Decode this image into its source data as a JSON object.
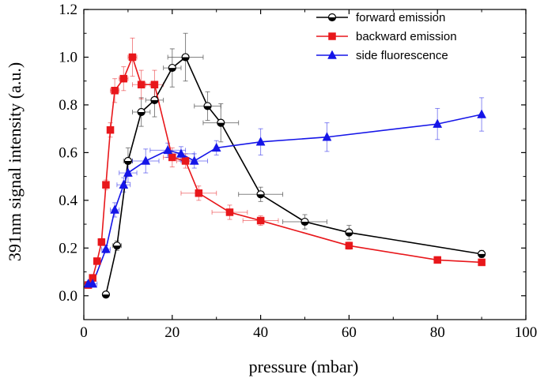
{
  "chart_data": {
    "type": "line",
    "xlabel": "pressure (mbar)",
    "ylabel": "391nm signal intensity (a.u.)",
    "xlim": [
      0,
      100
    ],
    "ylim": [
      -0.1,
      1.2
    ],
    "xticks": [
      "0",
      "20",
      "40",
      "60",
      "80",
      "100"
    ],
    "yticks": [
      "0.0",
      "0.2",
      "0.4",
      "0.6",
      "0.8",
      "1.0",
      "1.2"
    ],
    "grid": false,
    "legend_position": "top-right",
    "series": [
      {
        "name": "forward emission",
        "color": "#000000",
        "marker": "half-filled-circle",
        "points": [
          {
            "x": 5,
            "y": 0.005,
            "xerr": 0,
            "yerr": 0.01
          },
          {
            "x": 7.5,
            "y": 0.21,
            "xerr": 1,
            "yerr": 0.02
          },
          {
            "x": 10,
            "y": 0.565,
            "xerr": 1,
            "yerr": 0.055
          },
          {
            "x": 13,
            "y": 0.77,
            "xerr": 2,
            "yerr": 0.06
          },
          {
            "x": 16,
            "y": 0.82,
            "xerr": 2,
            "yerr": 0.07
          },
          {
            "x": 20,
            "y": 0.955,
            "xerr": 2,
            "yerr": 0.08
          },
          {
            "x": 23,
            "y": 1.0,
            "xerr": 4,
            "yerr": 0.1
          },
          {
            "x": 28,
            "y": 0.795,
            "xerr": 3,
            "yerr": 0.06
          },
          {
            "x": 31,
            "y": 0.725,
            "xerr": 4,
            "yerr": 0.08
          },
          {
            "x": 40,
            "y": 0.425,
            "xerr": 5,
            "yerr": 0.03
          },
          {
            "x": 50,
            "y": 0.31,
            "xerr": 5,
            "yerr": 0.03
          },
          {
            "x": 60,
            "y": 0.265,
            "xerr": 0,
            "yerr": 0.03
          },
          {
            "x": 90,
            "y": 0.175,
            "xerr": 0,
            "yerr": 0.015
          }
        ]
      },
      {
        "name": "backward emission",
        "color": "#e8171b",
        "marker": "square",
        "points": [
          {
            "x": 1,
            "y": 0.045,
            "xerr": 0,
            "yerr": 0.005
          },
          {
            "x": 2,
            "y": 0.075,
            "xerr": 0,
            "yerr": 0.01
          },
          {
            "x": 3,
            "y": 0.145,
            "xerr": 0,
            "yerr": 0.01
          },
          {
            "x": 4,
            "y": 0.225,
            "xerr": 0,
            "yerr": 0.015
          },
          {
            "x": 5,
            "y": 0.465,
            "xerr": 0,
            "yerr": 0.02
          },
          {
            "x": 6,
            "y": 0.695,
            "xerr": 0,
            "yerr": 0.03
          },
          {
            "x": 7,
            "y": 0.86,
            "xerr": 1,
            "yerr": 0.05
          },
          {
            "x": 9,
            "y": 0.91,
            "xerr": 1,
            "yerr": 0.05
          },
          {
            "x": 11,
            "y": 1.0,
            "xerr": 1,
            "yerr": 0.08
          },
          {
            "x": 13,
            "y": 0.885,
            "xerr": 2,
            "yerr": 0.06
          },
          {
            "x": 16,
            "y": 0.885,
            "xerr": 2,
            "yerr": 0.06
          },
          {
            "x": 20,
            "y": 0.58,
            "xerr": 2,
            "yerr": 0.04
          },
          {
            "x": 23,
            "y": 0.565,
            "xerr": 2,
            "yerr": 0.03
          },
          {
            "x": 26,
            "y": 0.43,
            "xerr": 4,
            "yerr": 0.03
          },
          {
            "x": 33,
            "y": 0.35,
            "xerr": 4,
            "yerr": 0.03
          },
          {
            "x": 40,
            "y": 0.315,
            "xerr": 4,
            "yerr": 0.02
          },
          {
            "x": 60,
            "y": 0.21,
            "xerr": 0,
            "yerr": 0.015
          },
          {
            "x": 80,
            "y": 0.15,
            "xerr": 0,
            "yerr": 0.005
          },
          {
            "x": 90,
            "y": 0.14,
            "xerr": 0,
            "yerr": 0.01
          }
        ]
      },
      {
        "name": "side fluorescence",
        "color": "#1515e8",
        "marker": "triangle",
        "points": [
          {
            "x": 1,
            "y": 0.05,
            "xerr": 1,
            "yerr": 0.01
          },
          {
            "x": 2,
            "y": 0.05,
            "xerr": 1,
            "yerr": 0.01
          },
          {
            "x": 5,
            "y": 0.195,
            "xerr": 1,
            "yerr": 0.015
          },
          {
            "x": 7,
            "y": 0.36,
            "xerr": 1,
            "yerr": 0.03
          },
          {
            "x": 9,
            "y": 0.465,
            "xerr": 1.5,
            "yerr": 0.03
          },
          {
            "x": 10,
            "y": 0.515,
            "xerr": 2,
            "yerr": 0.04
          },
          {
            "x": 14,
            "y": 0.565,
            "xerr": 3,
            "yerr": 0.05
          },
          {
            "x": 19,
            "y": 0.61,
            "xerr": 4,
            "yerr": 0.03
          },
          {
            "x": 22,
            "y": 0.595,
            "xerr": 3,
            "yerr": 0.03
          },
          {
            "x": 25,
            "y": 0.565,
            "xerr": 3,
            "yerr": 0.03
          },
          {
            "x": 30,
            "y": 0.62,
            "xerr": 0,
            "yerr": 0.03
          },
          {
            "x": 40,
            "y": 0.645,
            "xerr": 0,
            "yerr": 0.055
          },
          {
            "x": 55,
            "y": 0.665,
            "xerr": 0,
            "yerr": 0.06
          },
          {
            "x": 80,
            "y": 0.72,
            "xerr": 0,
            "yerr": 0.065
          },
          {
            "x": 90,
            "y": 0.76,
            "xerr": 0,
            "yerr": 0.07
          }
        ]
      }
    ]
  }
}
